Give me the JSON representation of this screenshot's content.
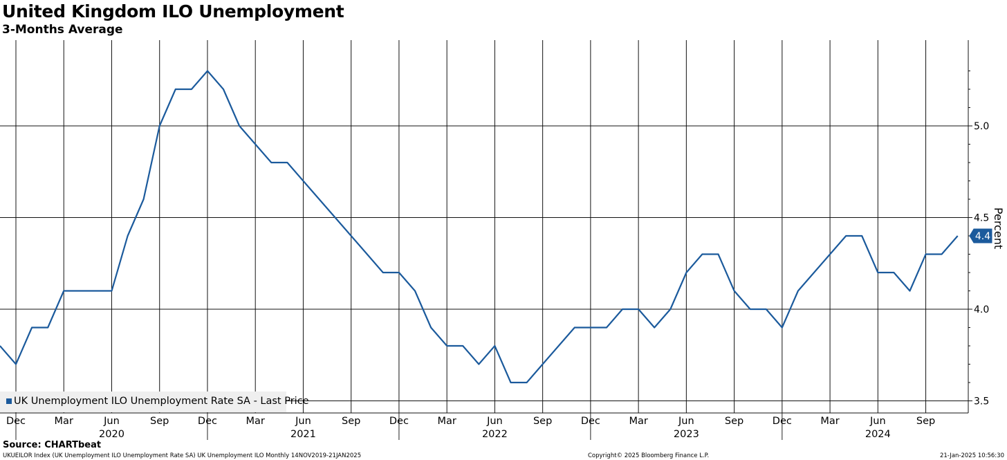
{
  "chart_data": {
    "type": "line",
    "title": "United Kingdom ILO Unemployment",
    "subtitle": "3-Months Average",
    "ylabel": "Percent",
    "ylim": [
      3.43,
      5.45
    ],
    "y_ticks": [
      3.5,
      4.0,
      4.5,
      5.0
    ],
    "y_tick_labels": [
      "3.5",
      "4.0",
      "4.5",
      "5.0"
    ],
    "month_ticks": [
      {
        "x": "2019-12",
        "label": "Dec"
      },
      {
        "x": "2020-03",
        "label": "Mar"
      },
      {
        "x": "2020-06",
        "label": "Jun"
      },
      {
        "x": "2020-09",
        "label": "Sep"
      },
      {
        "x": "2020-12",
        "label": "Dec"
      },
      {
        "x": "2021-03",
        "label": "Mar"
      },
      {
        "x": "2021-06",
        "label": "Jun"
      },
      {
        "x": "2021-09",
        "label": "Sep"
      },
      {
        "x": "2021-12",
        "label": "Dec"
      },
      {
        "x": "2022-03",
        "label": "Mar"
      },
      {
        "x": "2022-06",
        "label": "Jun"
      },
      {
        "x": "2022-09",
        "label": "Sep"
      },
      {
        "x": "2022-12",
        "label": "Dec"
      },
      {
        "x": "2023-03",
        "label": "Mar"
      },
      {
        "x": "2023-06",
        "label": "Jun"
      },
      {
        "x": "2023-09",
        "label": "Sep"
      },
      {
        "x": "2023-12",
        "label": "Dec"
      },
      {
        "x": "2024-03",
        "label": "Mar"
      },
      {
        "x": "2024-06",
        "label": "Jun"
      },
      {
        "x": "2024-09",
        "label": "Sep"
      }
    ],
    "year_labels": [
      {
        "x": "2020-06",
        "label": "2020"
      },
      {
        "x": "2021-06",
        "label": "2021"
      },
      {
        "x": "2022-06",
        "label": "2022"
      },
      {
        "x": "2023-06",
        "label": "2023"
      },
      {
        "x": "2024-06",
        "label": "2024"
      }
    ],
    "grid": true,
    "legend_position": "bottom-left",
    "last_value_label": "4.4",
    "series": [
      {
        "name": "UK Unemployment ILO Unemployment Rate SA - Last Price",
        "color": "#1b5a9c",
        "x": [
          "2019-11",
          "2019-12",
          "2020-01",
          "2020-02",
          "2020-03",
          "2020-04",
          "2020-05",
          "2020-06",
          "2020-07",
          "2020-08",
          "2020-09",
          "2020-10",
          "2020-11",
          "2020-12",
          "2021-01",
          "2021-02",
          "2021-03",
          "2021-04",
          "2021-05",
          "2021-06",
          "2021-07",
          "2021-08",
          "2021-09",
          "2021-10",
          "2021-11",
          "2021-12",
          "2022-01",
          "2022-02",
          "2022-03",
          "2022-04",
          "2022-05",
          "2022-06",
          "2022-07",
          "2022-08",
          "2022-09",
          "2022-10",
          "2022-11",
          "2022-12",
          "2023-01",
          "2023-02",
          "2023-03",
          "2023-04",
          "2023-05",
          "2023-06",
          "2023-07",
          "2023-08",
          "2023-09",
          "2023-10",
          "2023-11",
          "2023-12",
          "2024-01",
          "2024-02",
          "2024-03",
          "2024-04",
          "2024-05",
          "2024-06",
          "2024-07",
          "2024-08",
          "2024-09",
          "2024-10",
          "2024-11"
        ],
        "values": [
          3.8,
          3.7,
          3.9,
          3.9,
          4.1,
          4.1,
          4.1,
          4.1,
          4.4,
          4.6,
          5.0,
          5.2,
          5.2,
          5.3,
          5.2,
          5.0,
          4.9,
          4.8,
          4.8,
          4.7,
          4.6,
          4.5,
          4.4,
          4.3,
          4.2,
          4.2,
          4.1,
          3.9,
          3.8,
          3.8,
          3.7,
          3.8,
          3.6,
          3.6,
          3.7,
          3.8,
          3.9,
          3.9,
          3.9,
          4.0,
          4.0,
          3.9,
          4.0,
          4.2,
          4.3,
          4.3,
          4.1,
          4.0,
          4.0,
          3.9,
          4.1,
          4.2,
          4.3,
          4.4,
          4.4,
          4.2,
          4.2,
          4.1,
          4.3,
          4.3,
          4.4
        ]
      }
    ]
  },
  "source": "Source: CHARTbeat",
  "footer_left": "UKUEILOR Index (UK Unemployment ILO Unemployment Rate SA) UK Unemployment ILO  Monthly 14NOV2019-21JAN2025",
  "footer_center": "Copyright© 2025 Bloomberg Finance L.P.",
  "footer_right": "21-Jan-2025 10:56:30"
}
